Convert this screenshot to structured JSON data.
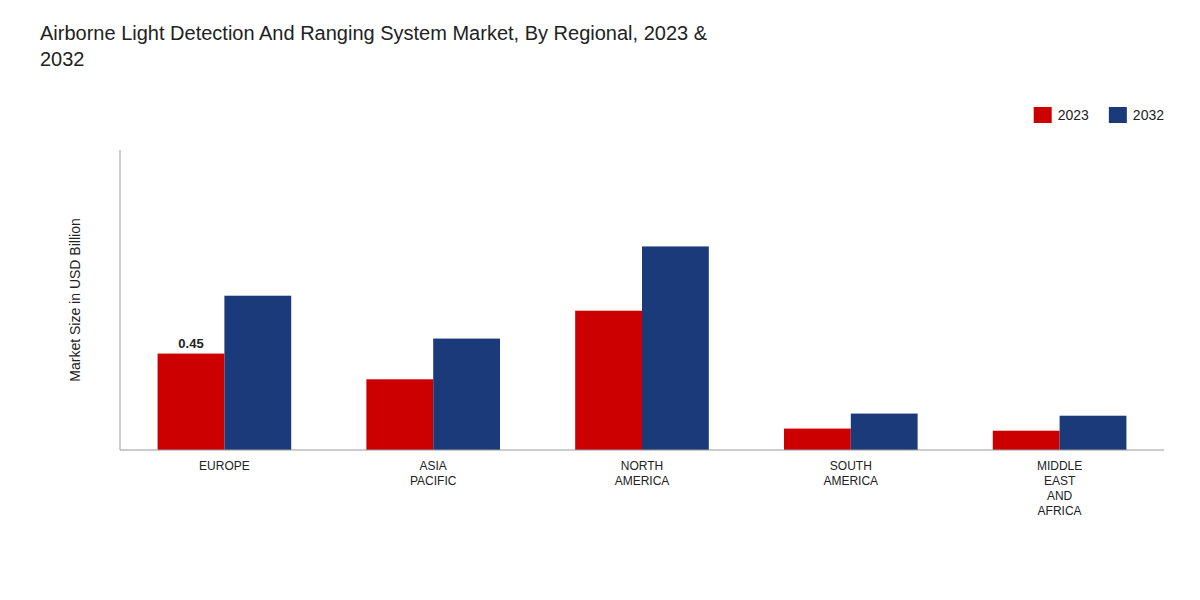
{
  "chart_data": {
    "type": "bar",
    "title": "Airborne Light Detection And Ranging System Market, By Regional, 2023 &\n2032",
    "y_label": "Market Size in USD Billion",
    "categories": [
      "EUROPE",
      "ASIA\nPACIFIC",
      "NORTH\nAMERICA",
      "SOUTH\nAMERICA",
      "MIDDLE\nEAST\nAND\nAFRICA"
    ],
    "series": [
      {
        "name": "2023",
        "color": "#cc0000",
        "values": [
          0.45,
          0.33,
          0.65,
          0.1,
          0.09
        ]
      },
      {
        "name": "2032",
        "color": "#1a3a7a",
        "values": [
          0.72,
          0.52,
          0.95,
          0.17,
          0.16
        ]
      }
    ],
    "ylim": [
      0,
      1.4
    ],
    "yticks": [],
    "tick_labels": "x",
    "grid": false,
    "legend": "top-right",
    "annotations": [
      {
        "text": "0.45",
        "category": "EUROPE",
        "series": "2023",
        "y": 0.45
      }
    ]
  }
}
